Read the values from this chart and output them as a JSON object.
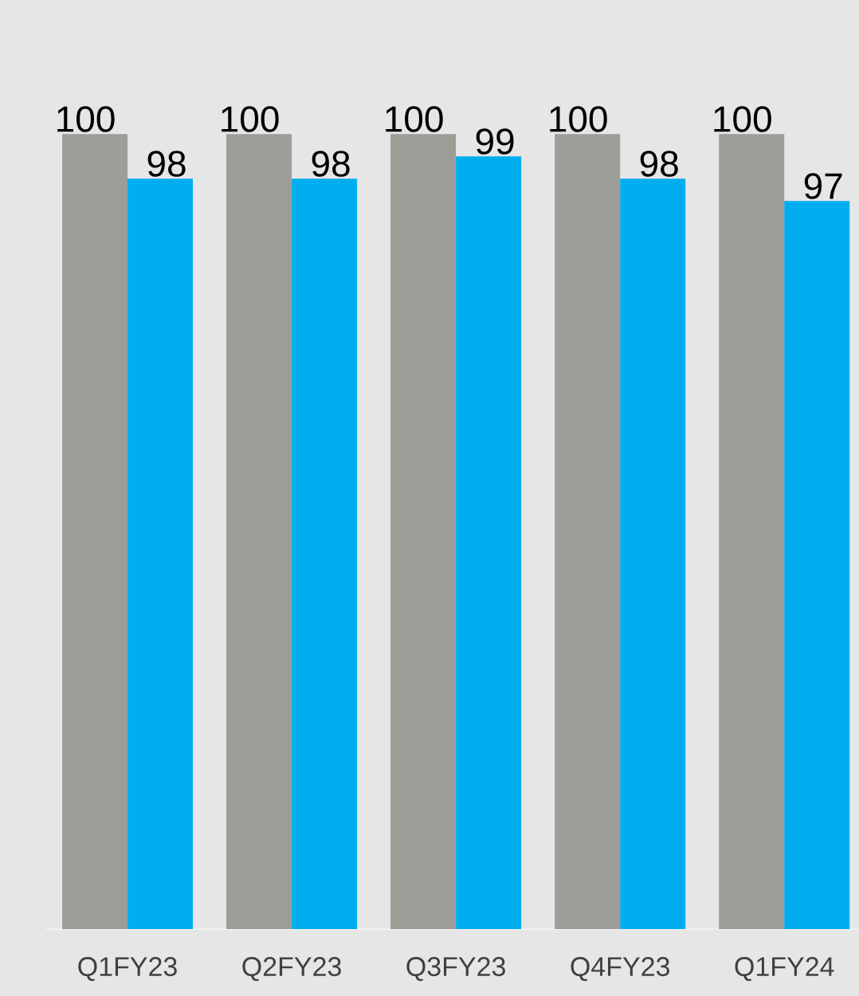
{
  "chart_data": {
    "type": "bar",
    "categories": [
      "Q1FY23",
      "Q2FY23",
      "Q3FY23",
      "Q4FY23",
      "Q1FY24"
    ],
    "series": [
      {
        "color": "#9d9d98",
        "values": [
          100,
          100,
          100,
          100,
          100
        ]
      },
      {
        "color": "#00aeef",
        "values": [
          98,
          98,
          99,
          98,
          97
        ]
      }
    ],
    "data_labels": true,
    "ylim": [
      64.4,
      106
    ],
    "tick_labels": "x"
  }
}
